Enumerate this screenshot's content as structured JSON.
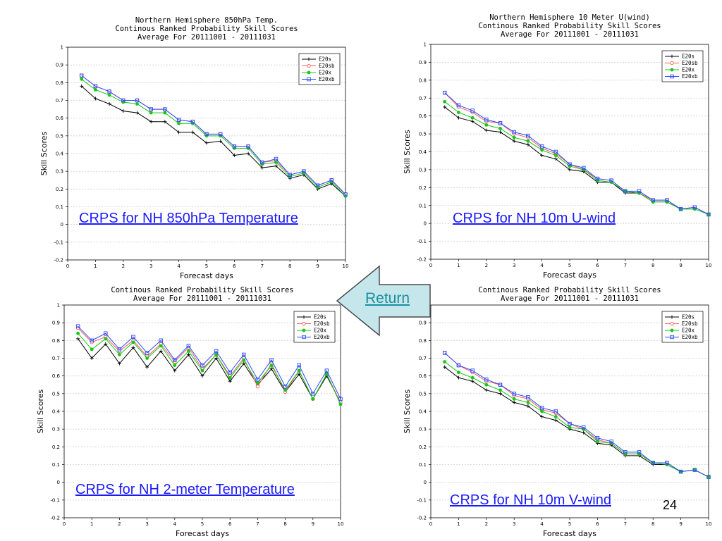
{
  "slide": {
    "page_number": "24",
    "return_label": "Return",
    "colors": {
      "link": "#1a1aff",
      "return_fill": "#c5e7ec",
      "return_text": "#1a8f9f"
    }
  },
  "series_legend": [
    "E20s",
    "E20sb",
    "E20x",
    "E20xb"
  ],
  "series_colors": [
    "#000000",
    "#ff5a5a",
    "#14c814",
    "#2a4aff"
  ],
  "chart_data": [
    {
      "type": "line",
      "title": [
        "Northern Hemisphere 850hPa Temp.",
        "Continous Ranked Probability Skill Scores",
        "Average For 20111001 - 20111031"
      ],
      "caption": "CRPS for NH 850hPa Temperature",
      "xlabel": "Forecast days",
      "ylabel": "Skill Scores",
      "xlim": [
        0,
        10
      ],
      "ylim": [
        -0.2,
        1
      ],
      "xticks": [
        "0",
        "1",
        "2",
        "3",
        "4",
        "5",
        "6",
        "7",
        "8",
        "9",
        "10"
      ],
      "yticks": [
        "-0.2",
        "-0.1",
        "0",
        "0.1",
        "0.2",
        "0.3",
        "0.4",
        "0.5",
        "0.6",
        "0.7",
        "0.8",
        "0.9",
        "1"
      ],
      "grid": true,
      "legend": "top-right",
      "x": [
        0.5,
        1,
        1.5,
        2,
        2.5,
        3,
        3.5,
        4,
        4.5,
        5,
        5.5,
        6,
        6.5,
        7,
        7.5,
        8,
        8.5,
        9,
        9.5,
        10
      ],
      "series": [
        {
          "name": "E20s",
          "marker": "plus",
          "values": [
            0.78,
            0.71,
            0.68,
            0.64,
            0.63,
            0.58,
            0.58,
            0.52,
            0.52,
            0.46,
            0.47,
            0.39,
            0.4,
            0.32,
            0.33,
            0.26,
            0.28,
            0.2,
            0.23,
            0.16
          ]
        },
        {
          "name": "E20sb",
          "marker": "circle",
          "values": [
            0.84,
            0.78,
            0.75,
            0.7,
            0.7,
            0.65,
            0.65,
            0.59,
            0.58,
            0.51,
            0.51,
            0.44,
            0.44,
            0.35,
            0.36,
            0.28,
            0.3,
            0.22,
            0.25,
            0.17
          ]
        },
        {
          "name": "E20x",
          "marker": "dot",
          "values": [
            0.82,
            0.76,
            0.73,
            0.69,
            0.68,
            0.63,
            0.63,
            0.57,
            0.57,
            0.5,
            0.5,
            0.43,
            0.43,
            0.34,
            0.35,
            0.27,
            0.29,
            0.21,
            0.24,
            0.16
          ]
        },
        {
          "name": "E20xb",
          "marker": "square",
          "values": [
            0.84,
            0.78,
            0.75,
            0.7,
            0.7,
            0.65,
            0.65,
            0.59,
            0.58,
            0.51,
            0.51,
            0.44,
            0.44,
            0.35,
            0.37,
            0.28,
            0.3,
            0.22,
            0.25,
            0.17
          ]
        }
      ]
    },
    {
      "type": "line",
      "title": [
        "Northern Hemisphere 10 Meter U(wind)",
        "Continous Ranked Probability Skill Scores",
        "Average For 20111001 - 20111031"
      ],
      "caption": "CRPS for NH 10m U-wind",
      "xlabel": "Forecast days",
      "ylabel": "Skill Scores",
      "xlim": [
        0,
        10
      ],
      "ylim": [
        -0.2,
        1
      ],
      "xticks": [
        "0",
        "1",
        "2",
        "3",
        "4",
        "5",
        "6",
        "7",
        "8",
        "9",
        "10"
      ],
      "yticks": [
        "-0.2",
        "-0.1",
        "0",
        "0.1",
        "0.2",
        "0.3",
        "0.4",
        "0.5",
        "0.6",
        "0.7",
        "0.8",
        "0.9",
        "1"
      ],
      "grid": true,
      "legend": "top-right",
      "x": [
        0.5,
        1,
        1.5,
        2,
        2.5,
        3,
        3.5,
        4,
        4.5,
        5,
        5.5,
        6,
        6.5,
        7,
        7.5,
        8,
        8.5,
        9,
        9.5,
        10
      ],
      "series": [
        {
          "name": "E20s",
          "marker": "plus",
          "values": [
            0.65,
            0.59,
            0.57,
            0.52,
            0.51,
            0.46,
            0.44,
            0.38,
            0.36,
            0.3,
            0.29,
            0.23,
            0.23,
            0.17,
            0.17,
            0.12,
            0.12,
            0.08,
            0.09,
            0.05
          ]
        },
        {
          "name": "E20sb",
          "marker": "circle",
          "values": [
            0.73,
            0.65,
            0.62,
            0.57,
            0.56,
            0.5,
            0.48,
            0.42,
            0.39,
            0.33,
            0.3,
            0.25,
            0.24,
            0.18,
            0.17,
            0.13,
            0.13,
            0.08,
            0.09,
            0.05
          ]
        },
        {
          "name": "E20x",
          "marker": "dot",
          "values": [
            0.68,
            0.62,
            0.59,
            0.55,
            0.53,
            0.48,
            0.46,
            0.41,
            0.38,
            0.32,
            0.3,
            0.24,
            0.23,
            0.18,
            0.17,
            0.12,
            0.12,
            0.08,
            0.08,
            0.05
          ]
        },
        {
          "name": "E20xb",
          "marker": "square",
          "values": [
            0.73,
            0.66,
            0.63,
            0.58,
            0.56,
            0.51,
            0.49,
            0.43,
            0.4,
            0.33,
            0.31,
            0.25,
            0.24,
            0.18,
            0.18,
            0.13,
            0.13,
            0.08,
            0.09,
            0.05
          ]
        }
      ]
    },
    {
      "type": "line",
      "title": [
        "Continous Ranked Probability Skill Scores",
        "Average For 20111001 - 20111031"
      ],
      "caption": "CRPS for NH 2-meter Temperature",
      "xlabel": "Forecast days",
      "ylabel": "Skill Scores",
      "xlim": [
        0,
        10
      ],
      "ylim": [
        -0.2,
        1
      ],
      "xticks": [
        "0",
        "1",
        "2",
        "3",
        "4",
        "5",
        "6",
        "7",
        "8",
        "9",
        "10"
      ],
      "yticks": [
        "-0.2",
        "-0.1",
        "0",
        "0.1",
        "0.2",
        "0.3",
        "0.4",
        "0.5",
        "0.6",
        "0.7",
        "0.8",
        "0.9",
        "1"
      ],
      "grid": true,
      "legend": "top-right",
      "x": [
        0.5,
        1,
        1.5,
        2,
        2.5,
        3,
        3.5,
        4,
        4.5,
        5,
        5.5,
        6,
        6.5,
        7,
        7.5,
        8,
        8.5,
        9,
        9.5,
        10
      ],
      "series": [
        {
          "name": "E20s",
          "marker": "plus",
          "values": [
            0.81,
            0.7,
            0.78,
            0.67,
            0.76,
            0.65,
            0.74,
            0.63,
            0.72,
            0.6,
            0.7,
            0.57,
            0.67,
            0.55,
            0.64,
            0.51,
            0.61,
            0.47,
            0.6,
            0.45
          ]
        },
        {
          "name": "E20sb",
          "marker": "circle",
          "values": [
            0.87,
            0.79,
            0.82,
            0.74,
            0.8,
            0.71,
            0.78,
            0.68,
            0.76,
            0.64,
            0.72,
            0.6,
            0.7,
            0.54,
            0.67,
            0.51,
            0.63,
            0.47,
            0.61,
            0.45
          ]
        },
        {
          "name": "E20x",
          "marker": "dot",
          "values": [
            0.84,
            0.75,
            0.81,
            0.72,
            0.79,
            0.7,
            0.77,
            0.66,
            0.74,
            0.63,
            0.72,
            0.59,
            0.69,
            0.56,
            0.66,
            0.52,
            0.63,
            0.47,
            0.61,
            0.44
          ]
        },
        {
          "name": "E20xb",
          "marker": "square",
          "values": [
            0.88,
            0.8,
            0.84,
            0.75,
            0.82,
            0.73,
            0.8,
            0.69,
            0.77,
            0.66,
            0.74,
            0.62,
            0.72,
            0.58,
            0.69,
            0.54,
            0.66,
            0.5,
            0.63,
            0.47
          ]
        }
      ]
    },
    {
      "type": "line",
      "title": [
        "Continous Ranked Probability Skill Scores",
        "Average For 20111001 - 20111031"
      ],
      "caption": "CRPS for NH 10m V-wind",
      "xlabel": "Forecast days",
      "ylabel": "Skill Scores",
      "xlim": [
        0,
        10
      ],
      "ylim": [
        -0.2,
        1
      ],
      "xticks": [
        "0",
        "1",
        "2",
        "3",
        "4",
        "5",
        "6",
        "7",
        "8",
        "9",
        "10"
      ],
      "yticks": [
        "-0.2",
        "-0.1",
        "0",
        "0.1",
        "0.2",
        "0.3",
        "0.4",
        "0.5",
        "0.6",
        "0.7",
        "0.8",
        "0.9",
        "1"
      ],
      "grid": true,
      "legend": "top-right",
      "x": [
        0.5,
        1,
        1.5,
        2,
        2.5,
        3,
        3.5,
        4,
        4.5,
        5,
        5.5,
        6,
        6.5,
        7,
        7.5,
        8,
        8.5,
        9,
        9.5,
        10
      ],
      "series": [
        {
          "name": "E20s",
          "marker": "plus",
          "values": [
            0.65,
            0.59,
            0.57,
            0.52,
            0.5,
            0.45,
            0.43,
            0.37,
            0.35,
            0.3,
            0.28,
            0.22,
            0.21,
            0.15,
            0.15,
            0.1,
            0.1,
            0.06,
            0.07,
            0.03
          ]
        },
        {
          "name": "E20sb",
          "marker": "circle",
          "values": [
            0.73,
            0.66,
            0.62,
            0.57,
            0.55,
            0.49,
            0.47,
            0.41,
            0.39,
            0.33,
            0.3,
            0.24,
            0.22,
            0.16,
            0.16,
            0.11,
            0.11,
            0.06,
            0.07,
            0.03
          ]
        },
        {
          "name": "E20x",
          "marker": "dot",
          "values": [
            0.68,
            0.62,
            0.59,
            0.55,
            0.52,
            0.47,
            0.45,
            0.4,
            0.37,
            0.31,
            0.3,
            0.23,
            0.22,
            0.16,
            0.16,
            0.11,
            0.1,
            0.06,
            0.07,
            0.03
          ]
        },
        {
          "name": "E20xb",
          "marker": "square",
          "values": [
            0.73,
            0.66,
            0.63,
            0.58,
            0.55,
            0.5,
            0.48,
            0.42,
            0.4,
            0.33,
            0.31,
            0.25,
            0.23,
            0.17,
            0.17,
            0.11,
            0.11,
            0.06,
            0.07,
            0.03
          ]
        }
      ]
    }
  ]
}
